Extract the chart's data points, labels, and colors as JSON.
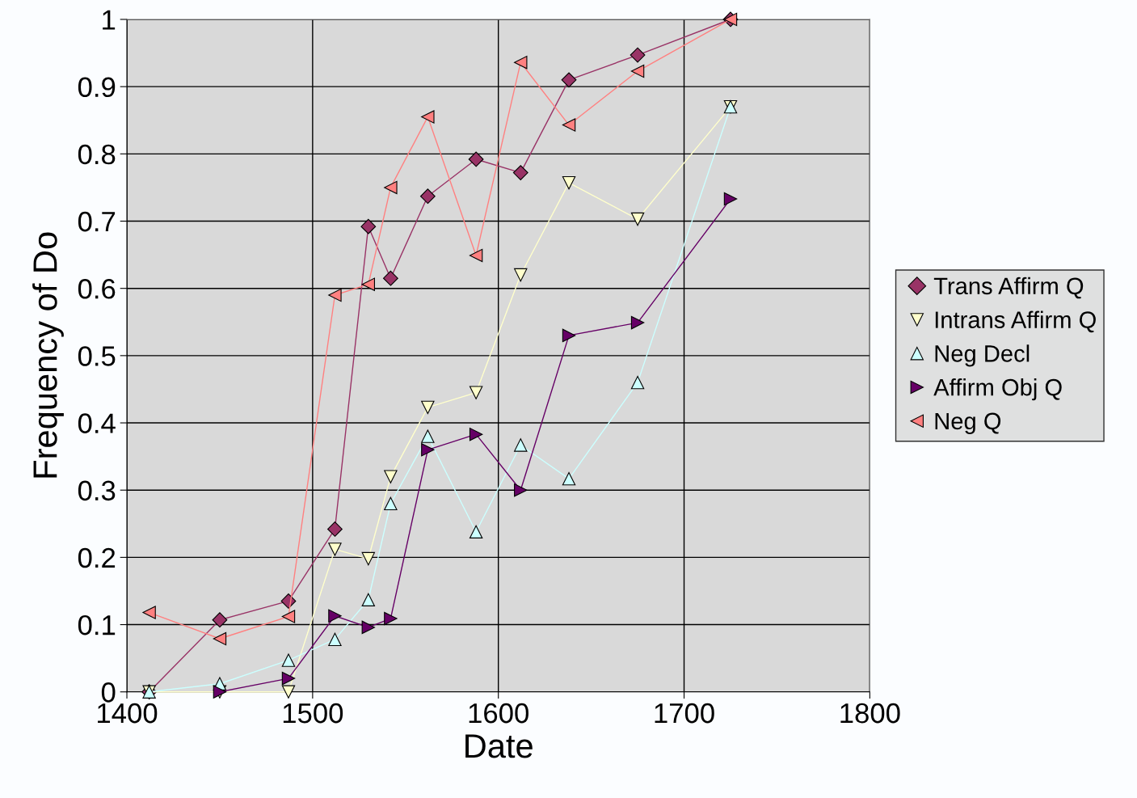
{
  "chart_data": {
    "type": "line",
    "xlabel": "Date",
    "ylabel": "Frequency of Do",
    "xlim": [
      1400,
      1800
    ],
    "xticks": [
      1400,
      1500,
      1600,
      1700,
      1800
    ],
    "ylim": [
      0,
      1
    ],
    "yticks": [
      0,
      0.1,
      0.2,
      0.3,
      0.4,
      0.5,
      0.6,
      0.7,
      0.8,
      0.9,
      1
    ],
    "grid": true,
    "legend": "right",
    "x": [
      1412,
      1450,
      1487,
      1512,
      1530,
      1542,
      1562,
      1588,
      1612,
      1638,
      1675,
      1725
    ],
    "series": [
      {
        "name": "Trans Affirm Q",
        "color": "#993366",
        "marker": "diamond",
        "values": [
          0,
          0.107,
          0.135,
          0.242,
          0.692,
          0.615,
          0.737,
          0.792,
          0.772,
          0.91,
          0.947,
          1.0
        ]
      },
      {
        "name": "Intrans Affirm Q",
        "color": "#ffffcc",
        "marker": "triangle-down",
        "values": [
          0,
          0,
          0,
          0.212,
          0.198,
          0.32,
          0.423,
          0.445,
          0.62,
          0.757,
          0.703,
          0.87
        ]
      },
      {
        "name": "Neg Decl",
        "color": "#ccffff",
        "marker": "triangle-up",
        "values": [
          0,
          0.012,
          0.047,
          0.078,
          0.137,
          0.28,
          0.38,
          0.238,
          0.367,
          0.317,
          0.46,
          0.87
        ]
      },
      {
        "name": "Affirm Obj Q",
        "color": "#660066",
        "marker": "triangle-right",
        "values": [
          null,
          0,
          0.02,
          0.113,
          0.096,
          0.109,
          0.36,
          0.383,
          0.3,
          0.53,
          0.549,
          0.733
        ]
      },
      {
        "name": "Neg Q",
        "color": "#ff8080",
        "marker": "triangle-left",
        "values": [
          0.118,
          0.079,
          0.112,
          0.59,
          0.606,
          0.75,
          0.855,
          0.649,
          0.936,
          0.843,
          0.923,
          1.0
        ]
      }
    ]
  }
}
